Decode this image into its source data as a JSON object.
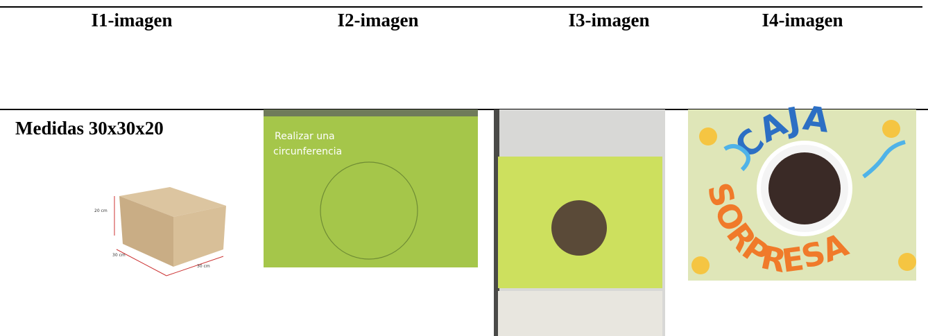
{
  "table": {
    "header": [
      "I1-imagen",
      "I2-imagen",
      "I3-imagen",
      "I4-imagen"
    ],
    "rows": [
      [
        "Medidas 30x30x20"
      ]
    ]
  },
  "images": {
    "i1_labels": [
      "20 cm",
      "30 cm",
      "30 cm"
    ],
    "i2_caption": [
      "Realizar una",
      "circunferencia"
    ],
    "i4_words": [
      "CAJA",
      "SORPRESA"
    ]
  }
}
